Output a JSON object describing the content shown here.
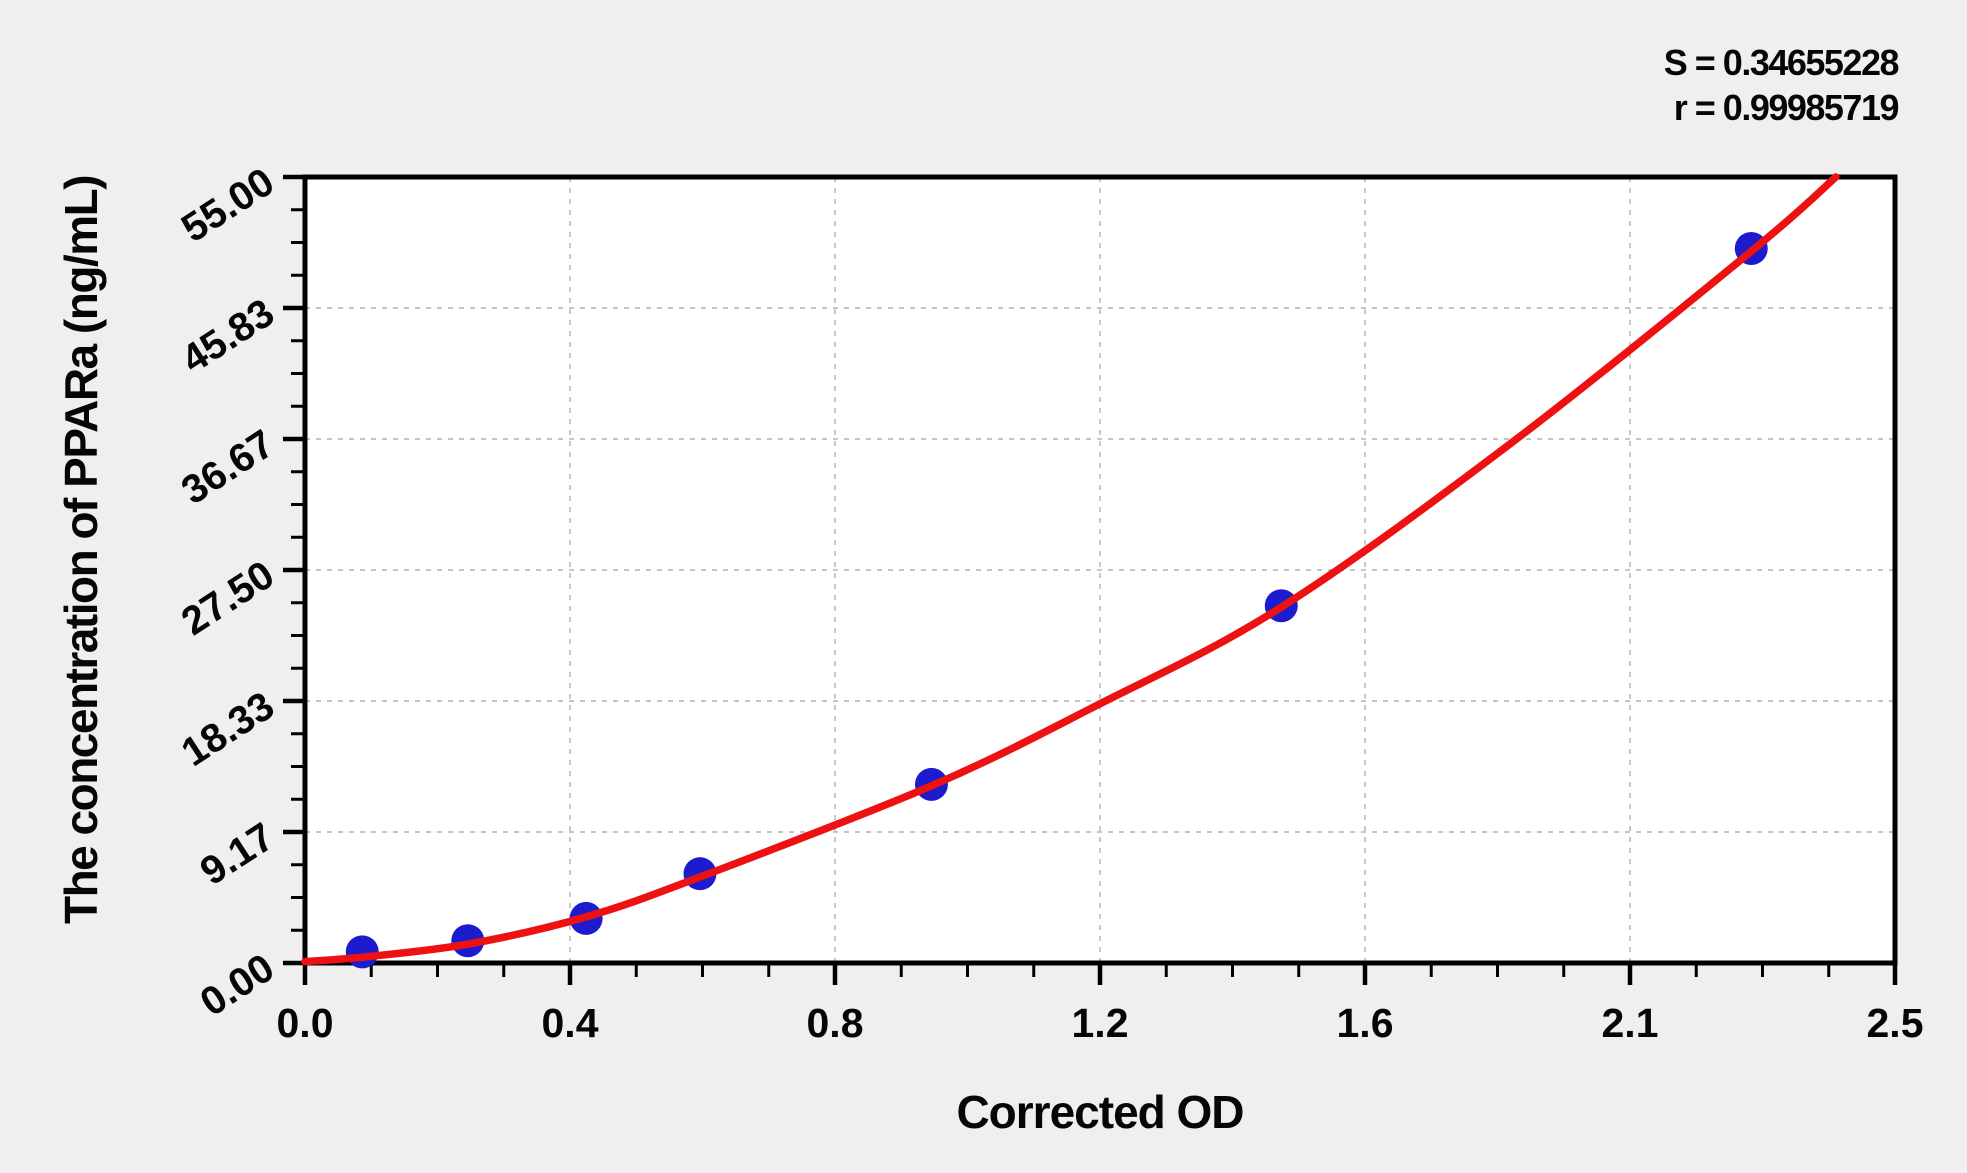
{
  "figure": {
    "background": "#efefef",
    "plot_background": "#ffffff"
  },
  "stats": {
    "s_line": "S = 0.34655228",
    "r_line": "r = 0.99985719",
    "s_value": "0.34655228",
    "r_value": "0.99985719"
  },
  "chart_data": {
    "type": "scatter",
    "title": "",
    "xlabel": "Corrected OD",
    "ylabel": "The concentration of PPARa (ng/mL)",
    "xlim": [
      0,
      2.5
    ],
    "ylim": [
      0,
      55
    ],
    "x_tick_labels": [
      "0.0",
      "0.4",
      "0.8",
      "1.2",
      "1.6",
      "2.1",
      "2.5"
    ],
    "y_tick_labels": [
      "0.00",
      "9.17",
      "18.33",
      "27.50",
      "36.67",
      "45.83",
      "55.00"
    ],
    "minor_ticks_per_interval": 3,
    "grid": {
      "style": "dashed",
      "color": "#b0b0b0",
      "at": "major-ticks"
    },
    "colors": {
      "curve": "#ee1111",
      "points": "#1c1cce",
      "axis": "#000000"
    },
    "series": [
      {
        "name": "standard-points",
        "type": "scatter",
        "color": "#1c1cce",
        "marker": "circle",
        "points": [
          [
            0.09,
            0.78
          ],
          [
            0.256,
            1.56
          ],
          [
            0.442,
            3.12
          ],
          [
            0.621,
            6.25
          ],
          [
            0.985,
            12.5
          ],
          [
            1.535,
            25
          ],
          [
            2.274,
            50
          ]
        ]
      },
      {
        "name": "fitted-curve",
        "type": "line",
        "color": "#ee1111",
        "points": [
          [
            0.0,
            0.1
          ],
          [
            0.1,
            0.45
          ],
          [
            0.26,
            1.35
          ],
          [
            0.44,
            3.2
          ],
          [
            0.62,
            6.0
          ],
          [
            0.985,
            12.4
          ],
          [
            1.246,
            18.05
          ],
          [
            1.535,
            24.9
          ],
          [
            1.9,
            36.5
          ],
          [
            2.274,
            49.8
          ],
          [
            2.407,
            55.0
          ]
        ]
      }
    ],
    "legend": null
  }
}
